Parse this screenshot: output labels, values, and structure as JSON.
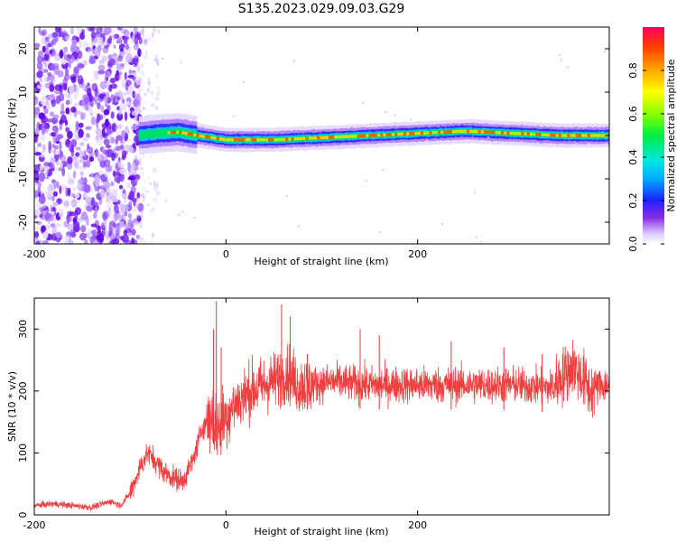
{
  "title": "S135.2023.029.09.03.G29",
  "chart_data": [
    {
      "type": "heatmap",
      "xlabel": "Height of straight line (km)",
      "ylabel": "Frequency (Hz)",
      "xlim": [
        -200,
        400
      ],
      "ylim": [
        -25,
        25
      ],
      "x_ticks": [
        -200,
        0,
        200
      ],
      "y_ticks": [
        -20,
        -10,
        0,
        10,
        20
      ],
      "colorbar": {
        "label": "Normalized spectral amplitude",
        "range": [
          0.0,
          1.0
        ],
        "ticks": [
          0.0,
          0.2,
          0.4,
          0.6,
          0.8
        ],
        "tick_labels": [
          "0.0",
          "0.2",
          "0.4",
          "0.6",
          "0.8"
        ]
      },
      "ridge": {
        "description_free": true,
        "points": [
          [
            -90,
            0.0
          ],
          [
            -70,
            0.5
          ],
          [
            -50,
            0.8
          ],
          [
            -30,
            0.0
          ],
          [
            0,
            -1.0
          ],
          [
            50,
            -1.0
          ],
          [
            100,
            -0.5
          ],
          [
            150,
            0.0
          ],
          [
            200,
            0.5
          ],
          [
            250,
            1.0
          ],
          [
            300,
            0.5
          ],
          [
            350,
            0.0
          ],
          [
            400,
            0.0
          ]
        ]
      },
      "noise_region": [
        -200,
        -95
      ]
    },
    {
      "type": "line",
      "xlabel": "Height of straight line (km)",
      "ylabel": "SNR (10 * v/v)",
      "xlim": [
        -200,
        400
      ],
      "ylim": [
        0,
        350
      ],
      "x_ticks": [
        -200,
        0,
        200
      ],
      "y_ticks": [
        0,
        100,
        200,
        300
      ],
      "series": [
        {
          "color": "#ef3535",
          "trend": [
            [
              -200,
              15
            ],
            [
              -180,
              18
            ],
            [
              -160,
              15
            ],
            [
              -140,
              12
            ],
            [
              -120,
              22
            ],
            [
              -110,
              15
            ],
            [
              -100,
              35
            ],
            [
              -90,
              75
            ],
            [
              -82,
              100
            ],
            [
              -75,
              90
            ],
            [
              -65,
              70
            ],
            [
              -55,
              60
            ],
            [
              -45,
              55
            ],
            [
              -35,
              85
            ],
            [
              -25,
              140
            ],
            [
              -15,
              160
            ],
            [
              -8,
              140
            ],
            [
              0,
              160
            ],
            [
              10,
              180
            ],
            [
              25,
              200
            ],
            [
              40,
              210
            ],
            [
              55,
              220
            ],
            [
              65,
              230
            ],
            [
              75,
              210
            ],
            [
              90,
              210
            ],
            [
              110,
              215
            ],
            [
              150,
              210
            ],
            [
              200,
              210
            ],
            [
              250,
              210
            ],
            [
              300,
              210
            ],
            [
              340,
              205
            ],
            [
              355,
              230
            ],
            [
              362,
              240
            ],
            [
              370,
              225
            ],
            [
              380,
              200
            ],
            [
              390,
              210
            ],
            [
              400,
              210
            ]
          ],
          "spikes": [
            [
              -10,
              345
            ],
            [
              -13,
              300
            ],
            [
              -5,
              270
            ],
            [
              58,
              340
            ],
            [
              67,
              320
            ],
            [
              85,
              260
            ],
            [
              140,
              300
            ],
            [
              160,
              290
            ],
            [
              235,
              280
            ],
            [
              290,
              270
            ],
            [
              330,
              260
            ]
          ]
        }
      ]
    }
  ]
}
